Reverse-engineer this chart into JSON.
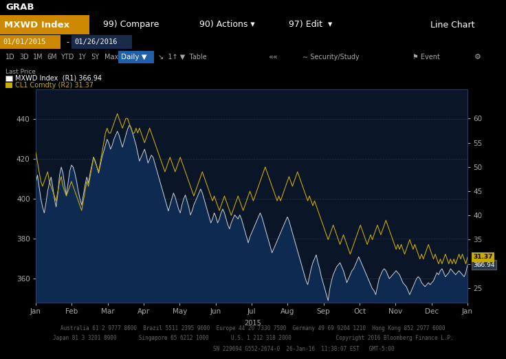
{
  "title_top": "GRAB",
  "toolbar_label": "MXWD Index",
  "toolbar_compare": "99) Compare",
  "toolbar_actions": "90) Actions ▾",
  "toolbar_edit": "97) Edit  ▾",
  "toolbar_linechart": "Line Chart",
  "date_start": "01/01/2015",
  "date_end": "01/26/2016",
  "legend_label1": "MXWD Index  (R1) 366.94",
  "legend_label2": "CL1 Comdty (R2) 31.37",
  "last_price_mxwd": 366.94,
  "last_price_cl1": 31.37,
  "left_ylim": [
    348,
    455
  ],
  "right_ylim": [
    22,
    66
  ],
  "left_yticks": [
    360,
    380,
    400,
    420,
    440
  ],
  "right_yticks": [
    25,
    30,
    35,
    40,
    45,
    50,
    55,
    60
  ],
  "xlabel_months": [
    "Jan",
    "Feb",
    "Mar",
    "Apr",
    "May",
    "Jun",
    "Jul",
    "Aug",
    "Sep",
    "Oct",
    "Nov",
    "Dec",
    "Jan"
  ],
  "bg_color": "#000000",
  "plot_bg": "#0a1628",
  "toolbar_bg": "#b80000",
  "toolbar_orange": "#d4870a",
  "dark_bg": "#060d1a",
  "grid_color": "#1a3050",
  "line1_color": "#d0d0d0",
  "line2_color": "#c8aa00",
  "fill1_color": "#0f2a50",
  "text_color": "#aaaaaa",
  "footer_line1": "Australia 61 2 9777 8600  Brazil 5511 2395 9000  Europe 44 20 7330 7500  Germany 49 69 9204 1210  Hong Kong 852 2977 6000",
  "footer_line2": "Japan 81 3 3201 8900       Singapore 65 6212 1000       U.S. 1 212 318 2000              Copyright 2016 Bloomberg Finance L.P.",
  "footer_line3": "                                SN 229694 G552-2674-0  26-Jan-16  11:38:07 EST   GMT-5:00",
  "mxwd_data": [
    408,
    412,
    406,
    400,
    396,
    393,
    398,
    404,
    408,
    411,
    406,
    400,
    396,
    403,
    412,
    416,
    413,
    407,
    402,
    408,
    414,
    417,
    416,
    413,
    409,
    404,
    400,
    397,
    402,
    407,
    411,
    408,
    413,
    417,
    421,
    419,
    416,
    413,
    417,
    421,
    424,
    427,
    430,
    428,
    425,
    427,
    430,
    432,
    434,
    432,
    429,
    426,
    429,
    432,
    435,
    437,
    436,
    433,
    430,
    427,
    423,
    419,
    421,
    423,
    425,
    422,
    418,
    420,
    422,
    421,
    418,
    415,
    412,
    409,
    406,
    403,
    400,
    397,
    394,
    397,
    400,
    403,
    401,
    398,
    395,
    393,
    397,
    400,
    402,
    399,
    396,
    392,
    394,
    397,
    399,
    401,
    403,
    405,
    403,
    400,
    397,
    394,
    391,
    388,
    390,
    393,
    391,
    388,
    390,
    393,
    395,
    393,
    390,
    387,
    385,
    388,
    390,
    392,
    391,
    390,
    392,
    390,
    387,
    384,
    381,
    378,
    381,
    383,
    385,
    387,
    389,
    391,
    393,
    391,
    388,
    385,
    382,
    379,
    376,
    373,
    375,
    377,
    379,
    381,
    383,
    385,
    387,
    389,
    391,
    389,
    386,
    383,
    380,
    377,
    374,
    371,
    368,
    365,
    362,
    359,
    357,
    361,
    365,
    368,
    370,
    372,
    368,
    365,
    361,
    358,
    355,
    352,
    349,
    355,
    359,
    362,
    364,
    366,
    367,
    368,
    366,
    364,
    361,
    358,
    360,
    362,
    364,
    365,
    367,
    369,
    371,
    369,
    367,
    365,
    363,
    361,
    359,
    357,
    355,
    354,
    352,
    356,
    360,
    362,
    364,
    365,
    364,
    362,
    360,
    361,
    362,
    363,
    364,
    363,
    362,
    360,
    358,
    357,
    356,
    354,
    352,
    354,
    356,
    358,
    360,
    361,
    360,
    358,
    357,
    356,
    357,
    358,
    357,
    358,
    359,
    361,
    363,
    362,
    364,
    365,
    363,
    361,
    362,
    363,
    365,
    364,
    363,
    362,
    363,
    364,
    363,
    362,
    361,
    363,
    366.94
  ],
  "oil_data": [
    53,
    51,
    49,
    47,
    46,
    47,
    48,
    49,
    47,
    46,
    45,
    44,
    43,
    45,
    47,
    48,
    46,
    45,
    44,
    45,
    46,
    47,
    46,
    45,
    44,
    43,
    42,
    41,
    43,
    45,
    47,
    46,
    48,
    50,
    52,
    51,
    50,
    49,
    51,
    53,
    55,
    57,
    58,
    57,
    57,
    58,
    59,
    60,
    61,
    60,
    59,
    58,
    59,
    60,
    60,
    59,
    58,
    57,
    57,
    58,
    57,
    58,
    57,
    56,
    55,
    56,
    57,
    58,
    57,
    56,
    55,
    54,
    53,
    52,
    51,
    50,
    49,
    50,
    51,
    52,
    51,
    50,
    49,
    50,
    51,
    52,
    51,
    50,
    49,
    48,
    47,
    46,
    45,
    44,
    45,
    46,
    47,
    48,
    49,
    48,
    47,
    46,
    45,
    44,
    43,
    44,
    43,
    42,
    41,
    42,
    43,
    44,
    43,
    42,
    41,
    40,
    41,
    42,
    43,
    44,
    43,
    42,
    41,
    42,
    43,
    44,
    45,
    44,
    43,
    44,
    45,
    46,
    47,
    48,
    49,
    50,
    49,
    48,
    47,
    46,
    45,
    44,
    43,
    44,
    43,
    44,
    45,
    46,
    47,
    48,
    47,
    46,
    47,
    48,
    49,
    48,
    47,
    46,
    45,
    44,
    43,
    44,
    43,
    42,
    43,
    42,
    41,
    40,
    39,
    38,
    37,
    36,
    35,
    36,
    37,
    38,
    37,
    36,
    35,
    34,
    35,
    36,
    35,
    34,
    33,
    32,
    33,
    34,
    35,
    36,
    37,
    38,
    37,
    36,
    35,
    34,
    35,
    36,
    35,
    36,
    37,
    38,
    37,
    36,
    37,
    38,
    39,
    38,
    37,
    36,
    35,
    34,
    33,
    34,
    33,
    34,
    33,
    32,
    33,
    34,
    35,
    34,
    33,
    34,
    33,
    32,
    31,
    32,
    31,
    32,
    33,
    34,
    33,
    32,
    31,
    32,
    31,
    30,
    31,
    30,
    31,
    32,
    31,
    30,
    31,
    30,
    31,
    30,
    31,
    32,
    31,
    32,
    31,
    30,
    31.37
  ]
}
